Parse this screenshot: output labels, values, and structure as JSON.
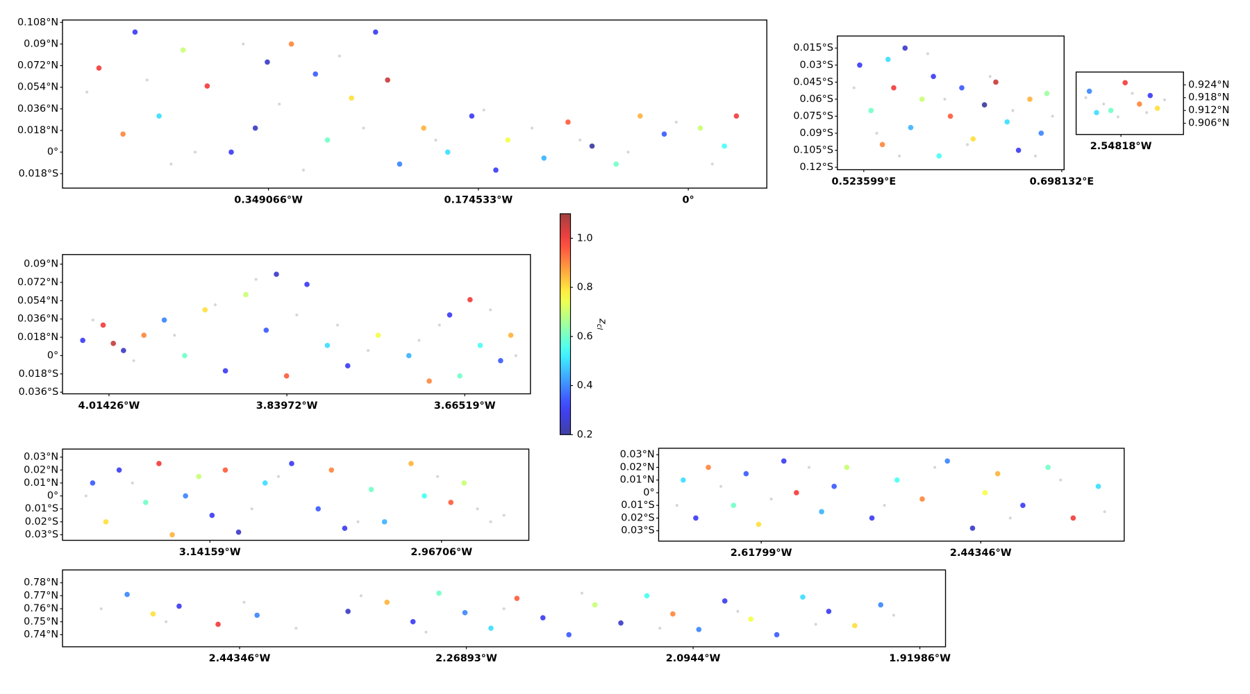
{
  "chart_data": [
    {
      "type": "scatter",
      "xlim": [
        -0.5203,
        0.0653
      ],
      "ylim": [
        -0.03,
        0.11
      ],
      "xticks": [
        {
          "value": -0.349066,
          "label": "0.349066°W"
        },
        {
          "value": -0.174533,
          "label": "0.174533°W"
        },
        {
          "value": 0,
          "label": "0°"
        }
      ],
      "yticks": [
        {
          "value": 0.108,
          "label": "0.108°N"
        },
        {
          "value": 0.09,
          "label": "0.09°N"
        },
        {
          "value": 0.072,
          "label": "0.072°N"
        },
        {
          "value": 0.054,
          "label": "0.054°N"
        },
        {
          "value": 0.036,
          "label": "0.036°N"
        },
        {
          "value": 0.018,
          "label": "0.018°N"
        },
        {
          "value": 0,
          "label": "0°"
        },
        {
          "value": -0.018,
          "label": "0.018°S"
        }
      ],
      "yaxis_side": "left",
      "points": {
        "x": [
          -0.49,
          -0.46,
          -0.44,
          -0.42,
          -0.4,
          -0.38,
          -0.36,
          -0.33,
          -0.31,
          -0.3,
          -0.28,
          -0.26,
          -0.25,
          -0.24,
          -0.22,
          -0.2,
          -0.18,
          -0.15,
          -0.12,
          -0.1,
          -0.08,
          -0.06,
          -0.04,
          -0.02,
          0.01,
          0.03,
          -0.47,
          -0.35,
          -0.16,
          0.04
        ],
        "y": [
          0.07,
          0.1,
          0.03,
          0.085,
          0.055,
          0.0,
          0.02,
          0.09,
          0.065,
          0.01,
          0.045,
          0.1,
          0.06,
          -0.01,
          0.02,
          0.0,
          0.03,
          0.01,
          -0.005,
          0.025,
          0.005,
          -0.01,
          0.03,
          0.015,
          0.02,
          0.005,
          0.015,
          0.075,
          -0.015,
          0.03
        ],
        "z": [
          1.0,
          0.3,
          0.5,
          0.7,
          1.0,
          0.3,
          0.25,
          0.9,
          0.35,
          0.6,
          0.8,
          0.3,
          1.05,
          0.4,
          0.85,
          0.5,
          0.3,
          0.75,
          0.45,
          0.95,
          0.2,
          0.6,
          0.85,
          0.35,
          0.7,
          0.55,
          0.9,
          0.25,
          0.3,
          1.0
        ]
      },
      "background": {
        "color": "#bbbbbb",
        "x": [
          -0.5,
          -0.45,
          -0.41,
          -0.37,
          -0.34,
          -0.29,
          -0.27,
          -0.21,
          -0.17,
          -0.13,
          -0.09,
          -0.05,
          -0.01,
          0.02,
          -0.43,
          -0.32
        ],
        "y": [
          0.05,
          0.06,
          0.0,
          0.09,
          0.04,
          0.08,
          0.02,
          0.01,
          0.035,
          0.02,
          0.01,
          0.0,
          0.025,
          -0.01,
          -0.01,
          -0.015
        ]
      }
    },
    {
      "type": "scatter",
      "xlim": [
        0.5003,
        0.7002
      ],
      "ylim": [
        -0.1221,
        -0.0044
      ],
      "xticks": [
        {
          "value": 0.523599,
          "label": "0.523599°E"
        },
        {
          "value": 0.698132,
          "label": "0.698132°E"
        }
      ],
      "yticks": [
        {
          "value": -0.015,
          "label": "0.015°S"
        },
        {
          "value": -0.03,
          "label": "0.03°S"
        },
        {
          "value": -0.045,
          "label": "0.045°S"
        },
        {
          "value": -0.06,
          "label": "0.06°S"
        },
        {
          "value": -0.075,
          "label": "0.075°S"
        },
        {
          "value": -0.09,
          "label": "0.09°S"
        },
        {
          "value": -0.105,
          "label": "0.105°S"
        },
        {
          "value": -0.12,
          "label": "0.12°S"
        }
      ],
      "yaxis_side": "left",
      "points": {
        "x": [
          0.52,
          0.53,
          0.54,
          0.55,
          0.56,
          0.565,
          0.575,
          0.585,
          0.59,
          0.6,
          0.61,
          0.62,
          0.63,
          0.64,
          0.65,
          0.66,
          0.67,
          0.68,
          0.685,
          0.545
        ],
        "y": [
          -0.03,
          -0.07,
          -0.1,
          -0.05,
          -0.015,
          -0.085,
          -0.06,
          -0.04,
          -0.11,
          -0.075,
          -0.05,
          -0.095,
          -0.065,
          -0.045,
          -0.08,
          -0.105,
          -0.06,
          -0.09,
          -0.055,
          -0.025
        ],
        "z": [
          0.3,
          0.6,
          0.9,
          1.0,
          0.25,
          0.45,
          0.7,
          0.3,
          0.55,
          0.95,
          0.35,
          0.8,
          0.2,
          1.05,
          0.5,
          0.3,
          0.85,
          0.4,
          0.65,
          0.5
        ]
      },
      "background": {
        "color": "#bbbbbb",
        "x": [
          0.515,
          0.535,
          0.555,
          0.58,
          0.595,
          0.615,
          0.635,
          0.655,
          0.675,
          0.69
        ],
        "y": [
          -0.05,
          -0.09,
          -0.11,
          -0.02,
          -0.06,
          -0.1,
          -0.04,
          -0.07,
          -0.11,
          -0.075
        ]
      }
    },
    {
      "type": "scatter",
      "xlim": [
        -2.5607,
        -2.5307
      ],
      "ylim": [
        0.90075,
        0.93
      ],
      "xticks": [
        {
          "value": -2.54818,
          "label": "2.54818°W"
        }
      ],
      "yticks": [
        {
          "value": 0.924,
          "label": "0.924°N"
        },
        {
          "value": 0.918,
          "label": "0.918°N"
        },
        {
          "value": 0.912,
          "label": "0.912°N"
        },
        {
          "value": 0.906,
          "label": "0.906°N"
        }
      ],
      "yaxis_side": "right",
      "points": {
        "x": [
          -2.557,
          -2.555,
          -2.547,
          -2.543,
          -2.54,
          -2.538,
          -2.551
        ],
        "y": [
          0.921,
          0.911,
          0.925,
          0.915,
          0.919,
          0.913,
          0.912
        ],
        "z": [
          0.4,
          0.5,
          1.0,
          0.9,
          0.3,
          0.8,
          0.6
        ]
      },
      "background": {
        "color": "#bbbbbb",
        "x": [
          -2.558,
          -2.553,
          -2.545,
          -2.541,
          -2.536,
          -2.549
        ],
        "y": [
          0.918,
          0.915,
          0.92,
          0.911,
          0.917,
          0.909
        ]
      }
    },
    {
      "type": "scatter",
      "xlim": [
        -4.05986,
        -3.60072
      ],
      "ylim": [
        -0.0376,
        0.0994
      ],
      "xticks": [
        {
          "value": -4.01426,
          "label": "4.01426°W"
        },
        {
          "value": -3.83972,
          "label": "3.83972°W"
        },
        {
          "value": -3.66519,
          "label": "3.66519°W"
        }
      ],
      "yticks": [
        {
          "value": 0.09,
          "label": "0.09°N"
        },
        {
          "value": 0.072,
          "label": "0.072°N"
        },
        {
          "value": 0.054,
          "label": "0.054°N"
        },
        {
          "value": 0.036,
          "label": "0.036°N"
        },
        {
          "value": 0.018,
          "label": "0.018°N"
        },
        {
          "value": 0,
          "label": "0°"
        },
        {
          "value": -0.018,
          "label": "0.018°S"
        },
        {
          "value": -0.036,
          "label": "0.036°S"
        }
      ],
      "yaxis_side": "left",
      "points": {
        "x": [
          -4.04,
          -4.02,
          -4.0,
          -3.98,
          -3.96,
          -3.94,
          -3.92,
          -3.9,
          -3.88,
          -3.86,
          -3.85,
          -3.84,
          -3.82,
          -3.8,
          -3.78,
          -3.75,
          -3.72,
          -3.7,
          -3.68,
          -3.66,
          -3.65,
          -3.63,
          -3.62,
          -3.67,
          -4.01
        ],
        "y": [
          0.015,
          0.03,
          0.005,
          0.02,
          0.035,
          0.0,
          0.045,
          -0.015,
          0.06,
          0.025,
          0.08,
          -0.02,
          0.07,
          0.01,
          -0.01,
          0.02,
          0.0,
          -0.025,
          0.04,
          0.055,
          0.01,
          -0.005,
          0.02,
          -0.02,
          0.012
        ],
        "z": [
          0.3,
          1.0,
          0.25,
          0.9,
          0.4,
          0.6,
          0.8,
          0.3,
          0.7,
          0.35,
          0.25,
          0.95,
          0.3,
          0.5,
          0.3,
          0.75,
          0.45,
          0.9,
          0.3,
          1.0,
          0.55,
          0.35,
          0.85,
          0.6,
          1.05
        ]
      },
      "background": {
        "color": "#bbbbbb",
        "x": [
          -4.03,
          -3.99,
          -3.95,
          -3.91,
          -3.87,
          -3.83,
          -3.79,
          -3.76,
          -3.71,
          -3.69,
          -3.64,
          -3.615
        ],
        "y": [
          0.035,
          -0.005,
          0.02,
          0.05,
          0.075,
          0.04,
          0.03,
          0.005,
          0.015,
          0.03,
          0.045,
          0.0
        ]
      }
    },
    {
      "type": "scatter",
      "xlim": [
        -3.25271,
        -2.90123
      ],
      "ylim": [
        -0.0343,
        0.0362
      ],
      "xticks": [
        {
          "value": -3.14159,
          "label": "3.14159°W"
        },
        {
          "value": -2.96706,
          "label": "2.96706°W"
        }
      ],
      "yticks": [
        {
          "value": 0.03,
          "label": "0.03°N"
        },
        {
          "value": 0.02,
          "label": "0.02°N"
        },
        {
          "value": 0.01,
          "label": "0.01°N"
        },
        {
          "value": 0,
          "label": "0°"
        },
        {
          "value": -0.01,
          "label": "0.01°S"
        },
        {
          "value": -0.02,
          "label": "0.02°S"
        },
        {
          "value": -0.03,
          "label": "0.03°S"
        }
      ],
      "yaxis_side": "left",
      "points": {
        "x": [
          -3.23,
          -3.22,
          -3.21,
          -3.19,
          -3.18,
          -3.17,
          -3.16,
          -3.15,
          -3.14,
          -3.13,
          -3.12,
          -3.1,
          -3.08,
          -3.06,
          -3.05,
          -3.04,
          -3.02,
          -3.01,
          -2.99,
          -2.98,
          -2.96,
          -2.95
        ],
        "y": [
          0.01,
          -0.02,
          0.02,
          -0.005,
          0.025,
          -0.03,
          0.0,
          0.015,
          -0.015,
          0.02,
          -0.028,
          0.01,
          0.025,
          -0.01,
          0.02,
          -0.025,
          0.005,
          -0.02,
          0.025,
          0.0,
          -0.005,
          0.01
        ],
        "z": [
          0.35,
          0.8,
          0.3,
          0.6,
          1.0,
          0.85,
          0.4,
          0.7,
          0.3,
          0.95,
          0.25,
          0.5,
          0.3,
          0.35,
          0.9,
          0.3,
          0.6,
          0.45,
          0.85,
          0.55,
          0.95,
          0.7
        ]
      },
      "background": {
        "color": "#bbbbbb",
        "x": [
          -3.235,
          -3.2,
          -3.11,
          -3.09,
          -3.03,
          -2.97,
          -2.94,
          -2.93,
          -2.92
        ],
        "y": [
          0.0,
          0.01,
          -0.01,
          0.015,
          -0.02,
          0.015,
          -0.01,
          -0.02,
          -0.015
        ]
      }
    },
    {
      "type": "scatter",
      "xlim": [
        -2.69952,
        -2.32944
      ],
      "ylim": [
        -0.0382,
        0.0351
      ],
      "xticks": [
        {
          "value": -2.61799,
          "label": "2.61799°W"
        },
        {
          "value": -2.44346,
          "label": "2.44346°W"
        }
      ],
      "yticks": [
        {
          "value": 0.03,
          "label": "0.03°N"
        },
        {
          "value": 0.02,
          "label": "0.02°N"
        },
        {
          "value": 0.01,
          "label": "0.01°N"
        },
        {
          "value": 0,
          "label": "0°"
        },
        {
          "value": -0.01,
          "label": "0.01°S"
        },
        {
          "value": -0.02,
          "label": "0.02°S"
        },
        {
          "value": -0.03,
          "label": "0.03°S"
        }
      ],
      "yaxis_side": "left",
      "points": {
        "x": [
          -2.68,
          -2.67,
          -2.66,
          -2.64,
          -2.63,
          -2.62,
          -2.6,
          -2.59,
          -2.57,
          -2.55,
          -2.53,
          -2.51,
          -2.49,
          -2.47,
          -2.45,
          -2.43,
          -2.41,
          -2.39,
          -2.37,
          -2.35,
          -2.56,
          -2.44
        ],
        "y": [
          0.01,
          -0.02,
          0.02,
          -0.01,
          0.015,
          -0.025,
          0.025,
          0.0,
          -0.015,
          0.02,
          -0.02,
          0.01,
          -0.005,
          0.025,
          -0.028,
          0.015,
          -0.01,
          0.02,
          -0.02,
          0.005,
          0.005,
          0.0
        ],
        "z": [
          0.5,
          0.3,
          0.9,
          0.6,
          0.35,
          0.8,
          0.3,
          1.0,
          0.45,
          0.7,
          0.3,
          0.55,
          0.9,
          0.4,
          0.25,
          0.85,
          0.3,
          0.6,
          1.0,
          0.5,
          0.35,
          0.75
        ]
      },
      "background": {
        "color": "#bbbbbb",
        "x": [
          -2.685,
          -2.65,
          -2.61,
          -2.58,
          -2.52,
          -2.48,
          -2.42,
          -2.38,
          -2.345
        ],
        "y": [
          -0.01,
          0.005,
          -0.005,
          0.02,
          -0.01,
          0.02,
          -0.02,
          0.01,
          -0.015
        ]
      }
    },
    {
      "type": "scatter",
      "xlim": [
        -2.57975,
        -1.90013
      ],
      "ylim": [
        0.7307,
        0.7899
      ],
      "xticks": [
        {
          "value": -2.44346,
          "label": "2.44346°W"
        },
        {
          "value": -2.26893,
          "label": "2.26893°W"
        },
        {
          "value": -2.0944,
          "label": "2.0944°W"
        },
        {
          "value": -1.91986,
          "label": "1.91986°W"
        }
      ],
      "yticks": [
        {
          "value": 0.78,
          "label": "0.78°N"
        },
        {
          "value": 0.77,
          "label": "0.77°N"
        },
        {
          "value": 0.76,
          "label": "0.76°N"
        },
        {
          "value": 0.75,
          "label": "0.75°N"
        },
        {
          "value": 0.74,
          "label": "0.74°N"
        }
      ],
      "yaxis_side": "left",
      "points": {
        "x": [
          -2.53,
          -2.51,
          -2.49,
          -2.46,
          -2.43,
          -2.36,
          -2.33,
          -2.31,
          -2.29,
          -2.27,
          -2.25,
          -2.23,
          -2.21,
          -2.19,
          -2.17,
          -2.15,
          -2.13,
          -2.11,
          -2.09,
          -2.07,
          -2.05,
          -2.03,
          -2.01,
          -1.99,
          -1.97,
          -1.95
        ],
        "y": [
          0.771,
          0.756,
          0.762,
          0.748,
          0.755,
          0.758,
          0.765,
          0.75,
          0.772,
          0.757,
          0.745,
          0.768,
          0.753,
          0.74,
          0.763,
          0.749,
          0.77,
          0.756,
          0.744,
          0.766,
          0.752,
          0.74,
          0.769,
          0.758,
          0.747,
          0.763
        ],
        "z": [
          0.4,
          0.8,
          0.3,
          1.0,
          0.4,
          0.25,
          0.85,
          0.3,
          0.6,
          0.4,
          0.5,
          0.95,
          0.3,
          0.35,
          0.7,
          0.25,
          0.55,
          0.9,
          0.4,
          0.3,
          0.75,
          0.35,
          0.5,
          0.3,
          0.8,
          0.4
        ]
      },
      "background": {
        "color": "#bbbbbb",
        "x": [
          -2.55,
          -2.5,
          -2.44,
          -2.4,
          -2.35,
          -2.3,
          -2.24,
          -2.18,
          -2.12,
          -2.06,
          -2.0,
          -1.94
        ],
        "y": [
          0.76,
          0.75,
          0.765,
          0.745,
          0.77,
          0.742,
          0.76,
          0.772,
          0.745,
          0.758,
          0.748,
          0.755
        ]
      }
    },
    {
      "type": "colorbar",
      "colormap": "jet",
      "label": "z",
      "label_sub": "cl",
      "lim": [
        0.2,
        1.1
      ],
      "ticks": [
        {
          "value": 0.2,
          "label": "0.2"
        },
        {
          "value": 0.4,
          "label": "0.4"
        },
        {
          "value": 0.6,
          "label": "0.6"
        },
        {
          "value": 0.8,
          "label": "0.8"
        },
        {
          "value": 1.0,
          "label": "1.0"
        }
      ]
    }
  ]
}
